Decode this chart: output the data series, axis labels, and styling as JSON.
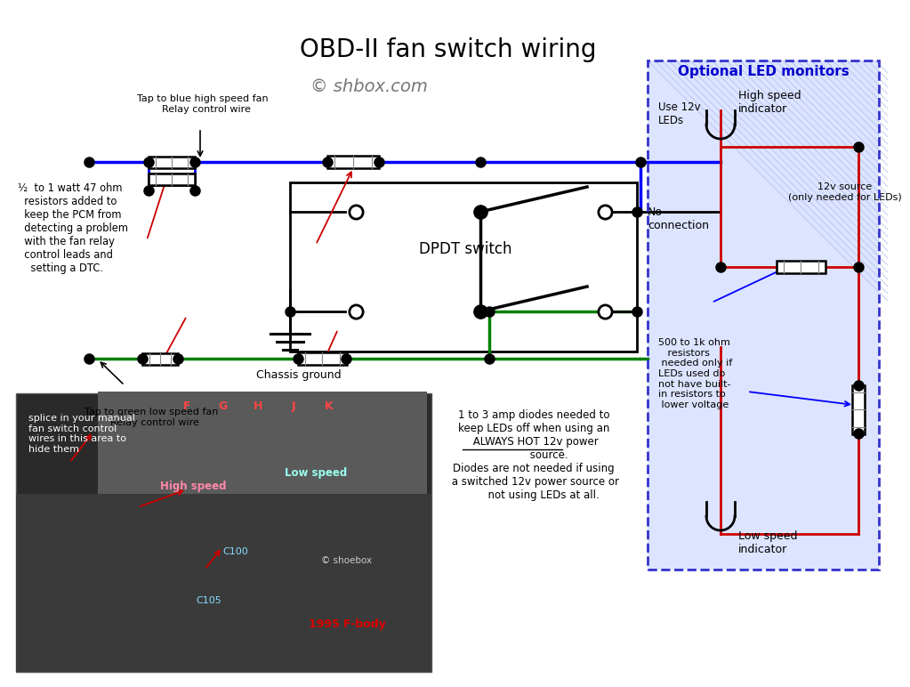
{
  "title": "OBD-II fan switch wiring",
  "watermark": "© shbox.com",
  "bg_color": "#ffffff",
  "blue_color": "#0000ff",
  "green_color": "#008000",
  "red_color": "#cc0000",
  "black_color": "#000000",
  "dashed_box_color": "#3333cc",
  "led_title_color": "#0000cc",
  "label_blue_line": "Tap to blue high speed fan\n  Relay control wire",
  "label_green_line": "Tap to green low speed fan\n  Relay control wire",
  "label_resistors": "½  to 1 watt 47 ohm\n  resistors added to\n  keep the PCM from\n  detecting a problem\n  with the fan relay\n  control leads and\n    setting a DTC.",
  "label_ground": "Chassis ground",
  "label_dpdt": "DPDT switch",
  "label_no_connection": "No\nconnection",
  "label_led_title": "Optional LED monitors",
  "label_use_12v": "Use 12v\nLEDs",
  "label_high_speed": "High speed\nindicator",
  "label_12v_source": "12v source\n(only needed for LEDs)",
  "label_500ohm": "500 to 1k ohm\n   resistors\n needed only if\nLEDs used do\nnot have built-\nin resistors to\n lower voltage",
  "label_low_speed": "Low speed\nindicator",
  "label_diodes": "1 to 3 amp diodes needed to\nkeep LEDs off when using an\n ALWAYS HOT 12v power\n         source.\nDiodes are not needed if using\n a switched 12v power source or\n      not using LEDs at all."
}
